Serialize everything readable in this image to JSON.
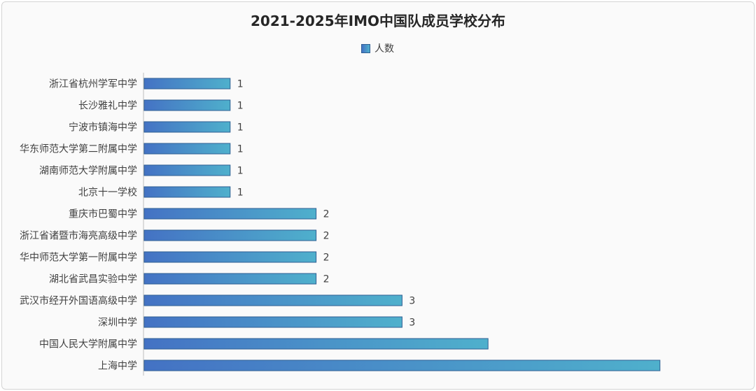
{
  "chart_data": {
    "type": "bar",
    "orientation": "horizontal",
    "title": "2021-2025年IMO中国队成员学校分布",
    "legend": {
      "position": "top",
      "label": "人数"
    },
    "categories": [
      "浙江省杭州学军中学",
      "长沙雅礼中学",
      "宁波市镇海中学",
      "华东师范大学第二附属中学",
      "湖南师范大学附属中学",
      "北京十一学校",
      "重庆市巴蜀中学",
      "浙江省诸暨市海亮高级中学",
      "华中师范大学第一附属中学",
      "湖北省武昌实验中学",
      "武汉市经开外国语高级中学",
      "深圳中学",
      "中国人民大学附属中学",
      "上海中学"
    ],
    "series": [
      {
        "name": "人数",
        "values": [
          1,
          1,
          1,
          1,
          1,
          1,
          2,
          2,
          2,
          2,
          3,
          3,
          4,
          6
        ],
        "labels": [
          "1",
          "1",
          "1",
          "1",
          "1",
          "1",
          "2",
          "2",
          "2",
          "2",
          "3",
          "3",
          "",
          ""
        ]
      }
    ],
    "grid": false,
    "colors": {
      "bar_start": "#4472c4",
      "bar_end": "#4fb0cc",
      "bar_border": "#2f5f93"
    }
  }
}
